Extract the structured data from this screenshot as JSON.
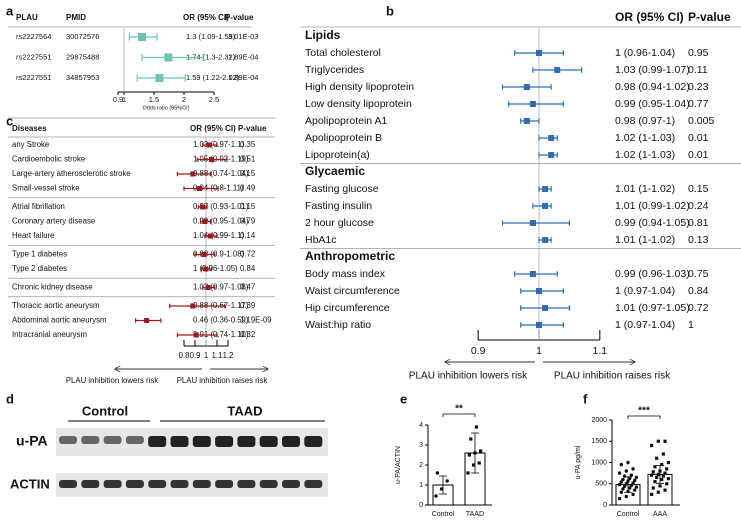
{
  "chart_data": [
    {
      "panel": "a",
      "type": "forest",
      "columns": [
        "PLAU",
        "PMID",
        "OR (95% CI)",
        "P-value"
      ],
      "snps": [
        "rs2227564",
        "rs2227551",
        "rs2227551"
      ],
      "pmids": [
        "30072576",
        "29875488",
        "34857953"
      ],
      "values": [
        1.3,
        1.74,
        1.59
      ],
      "lower": [
        1.09,
        1.3,
        1.22
      ],
      "upper": [
        1.55,
        2.32,
        2.02
      ],
      "value_labels": [
        "1.3 (1.09-1.55)",
        "1.74 (1.3-2.32)",
        "1.59 (1.22-2.02)"
      ],
      "p_values": [
        "3.01E-03",
        "1.89E-04",
        "1.89E-04"
      ],
      "xlim": [
        0.7,
        2.6
      ],
      "xticks": [
        0.9,
        1,
        1.5,
        2,
        2.5
      ],
      "reference_line": 1,
      "xlabel": "Odds ratio (95%CI)",
      "color": "#6cc4b3"
    },
    {
      "panel": "b",
      "type": "forest_grouped",
      "columns": [
        "OR (95% CI)",
        "P-value"
      ],
      "groups": [
        {
          "name": "Lipids",
          "categories": [
            "Total cholesterol",
            "Triglycerides",
            "High density lipoprotein",
            "Low density lipoprotein",
            "Apolipoprotein A1",
            "Apolipoprotein B",
            "Lipoprotein(a)"
          ],
          "values": [
            1,
            1.03,
            0.98,
            0.99,
            0.98,
            1.02,
            1.02
          ],
          "lower": [
            0.96,
            0.99,
            0.94,
            0.95,
            0.97,
            1,
            1
          ],
          "upper": [
            1.04,
            1.07,
            1.02,
            1.04,
            1,
            1.03,
            1.03
          ],
          "value_labels": [
            "1 (0.96-1.04)",
            "1.03 (0.99-1.07)",
            "0.98 (0.94-1.02)",
            "0.99 (0.95-1.04)",
            "0.98 (0.97-1)",
            "1.02 (1-1.03)",
            "1.02 (1-1.03)"
          ],
          "p_values": [
            "0.95",
            "0.11",
            "0.23",
            "0.77",
            "0.005",
            "0.01",
            "0.01"
          ]
        },
        {
          "name": "Glycaemic",
          "categories": [
            "Fasting glucose",
            "Fasting insulin",
            "2 hour glucose",
            "HbA1c"
          ],
          "values": [
            1.01,
            1.01,
            0.99,
            1.01
          ],
          "lower": [
            1,
            0.99,
            0.94,
            1
          ],
          "upper": [
            1.02,
            1.02,
            1.05,
            1.02
          ],
          "value_labels": [
            "1.01 (1-1.02)",
            "1.01 (0.99-1.02)",
            "0.99 (0.94-1.05)",
            "1.01 (1-1.02)"
          ],
          "p_values": [
            "0.15",
            "0.24",
            "0.81",
            "0.13"
          ]
        },
        {
          "name": "Anthropometric",
          "categories": [
            "Body mass index",
            "Waist circumference",
            "Hip circumference",
            "Waist:hip ratio"
          ],
          "values": [
            0.99,
            1,
            1.01,
            1
          ],
          "lower": [
            0.96,
            0.97,
            0.97,
            0.97
          ],
          "upper": [
            1.03,
            1.04,
            1.05,
            1.04
          ],
          "value_labels": [
            "0.99 (0.96-1.03)",
            "1 (0.97-1.04)",
            "1.01 (0.97-1.05)",
            "1 (0.97-1.04)"
          ],
          "p_values": [
            "0.75",
            "0.84",
            "0.72",
            "1"
          ]
        }
      ],
      "xlim": [
        0.88,
        1.12
      ],
      "xticks": [
        0.9,
        1,
        1.1
      ],
      "reference_line": 1,
      "direction_labels": [
        "PLAU inhibition lowers risk",
        "PLAU inhibition raises risk"
      ],
      "color": "#2e6db4"
    },
    {
      "panel": "c",
      "type": "forest_grouped",
      "columns": [
        "Diseases",
        "OR (95% CI)",
        "P-value"
      ],
      "groups": [
        {
          "categories": [
            "any Stroke",
            "Cardioembolic stroke",
            "Large-artery atherosclerotic stroke",
            "Small-vessel stroke"
          ],
          "values": [
            1.03,
            1.05,
            0.88,
            0.94
          ],
          "lower": [
            0.97,
            0.92,
            0.74,
            0.8
          ],
          "upper": [
            1.1,
            1.19,
            1.04,
            1.11
          ],
          "value_labels": [
            "1.03 (0.97-1.1)",
            "1.05 (0.92-1.19)",
            "0.88 (0.74-1.04)",
            "0.94 (0.8-1.11)"
          ],
          "p_values": [
            "0.35",
            "0.51",
            "0.15",
            "0.49"
          ]
        },
        {
          "categories": [
            "Atrial fibrillation",
            "Coronary artery disease",
            "Heart failure"
          ],
          "values": [
            0.97,
            0.99,
            1.04
          ],
          "lower": [
            0.93,
            0.95,
            0.99
          ],
          "upper": [
            1.01,
            1.04,
            1.1
          ],
          "value_labels": [
            "0.97 (0.93-1.01)",
            "0.99 (0.95-1.04)",
            "1.04 (0.99-1.1)"
          ],
          "p_values": [
            "0.15",
            "0.79",
            "0.14"
          ]
        },
        {
          "categories": [
            "Type 1 diabetes",
            "Type 2 diabetes"
          ],
          "values": [
            0.98,
            1
          ],
          "lower": [
            0.9,
            0.96
          ],
          "upper": [
            1.08,
            1.05
          ],
          "value_labels": [
            "0.98 (0.9-1.08)",
            "1 (0.96-1.05)"
          ],
          "p_values": [
            "0.72",
            "0.84"
          ]
        },
        {
          "categories": [
            "Chronic kidney disease"
          ],
          "values": [
            1.02
          ],
          "lower": [
            0.97
          ],
          "upper": [
            1.08
          ],
          "value_labels": [
            "1.02 (0.97-1.08)"
          ],
          "p_values": [
            "0.47"
          ]
        },
        {
          "categories": [
            "Thoracic aortic aneurysm",
            "Abdominal aortic aneurysm",
            "Intracranial aneurysm"
          ],
          "values": [
            0.88,
            0.46,
            0.91
          ],
          "lower": [
            0.67,
            0.36,
            0.74
          ],
          "upper": [
            1.17,
            0.59,
            1.1
          ],
          "value_labels": [
            "0.88 (0.67-1.17)",
            "0.46 (0.36-0.59)",
            "0.91 (0.74-1.10)"
          ],
          "p_values": [
            "0.39",
            "1.19E-09",
            "0.32"
          ]
        }
      ],
      "xlim": [
        0.3,
        1.3
      ],
      "xticks": [
        0.8,
        0.9,
        1,
        1.1,
        1.2
      ],
      "reference_line": 1,
      "direction_labels": [
        "PLAU inhibition lowers risk",
        "PLAU inhibition raises risk"
      ],
      "color": "#9e1b1b"
    },
    {
      "panel": "e",
      "type": "bar",
      "categories": [
        "Control",
        "TAAD"
      ],
      "values": [
        1,
        2.6
      ],
      "errors": [
        0.45,
        1.0
      ],
      "points": [
        [
          0.45,
          0.8,
          1.2,
          1.6
        ],
        [
          1.6,
          2.0,
          2.1,
          2.5,
          2.6,
          2.7,
          3.3,
          3.9
        ]
      ],
      "ylabel": "u-PA/ACTIN",
      "ylim": [
        0,
        4
      ],
      "yticks": [
        0,
        1,
        2,
        3,
        4
      ],
      "significance": "**",
      "color": "#ffffff"
    },
    {
      "panel": "f",
      "type": "bar",
      "categories": [
        "Control",
        "AAA"
      ],
      "values": [
        480,
        720
      ],
      "errors": [
        180,
        210
      ],
      "points": [
        [
          150,
          200,
          250,
          300,
          320,
          350,
          380,
          400,
          420,
          440,
          460,
          480,
          500,
          520,
          540,
          560,
          580,
          600,
          620,
          650,
          680,
          700,
          750,
          800,
          850,
          950,
          1000
        ],
        [
          250,
          300,
          350,
          400,
          450,
          500,
          550,
          600,
          620,
          650,
          680,
          700,
          720,
          750,
          780,
          800,
          850,
          900,
          950,
          1000,
          1100,
          1200,
          1400,
          1500,
          1500
        ]
      ],
      "ylabel": "u-PA pg/ml",
      "ylim": [
        0,
        2000
      ],
      "yticks": [
        0,
        500,
        1000,
        1500,
        2000
      ],
      "significance": "***",
      "color": "#ffffff"
    }
  ],
  "blot": {
    "panel": "d",
    "groups": [
      "Control",
      "TAAD"
    ],
    "rows": [
      "u-PA",
      "ACTIN"
    ]
  }
}
